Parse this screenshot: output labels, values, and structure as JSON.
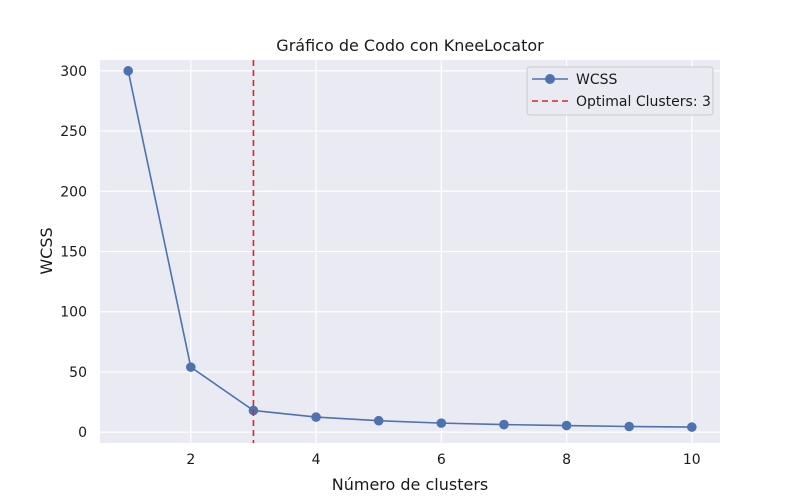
{
  "chart_data": {
    "type": "line",
    "title": "Gráfico de Codo con KneeLocator",
    "xlabel": "Número de clusters",
    "ylabel": "WCSS",
    "x": [
      1,
      2,
      3,
      4,
      5,
      6,
      7,
      8,
      9,
      10
    ],
    "series": [
      {
        "name": "WCSS",
        "values": [
          300,
          54,
          18,
          12.5,
          9.5,
          7.5,
          6.3,
          5.5,
          4.7,
          4.2
        ],
        "color": "#4c72b0",
        "marker": "circle"
      }
    ],
    "reference_line": {
      "orientation": "vertical",
      "x": 3,
      "label": "Optimal Clusters: 3",
      "color": "#d62728",
      "style": "dashed"
    },
    "xlim": [
      0.55,
      10.45
    ],
    "ylim": [
      -9,
      309
    ],
    "xticks": [
      2,
      4,
      6,
      8,
      10
    ],
    "yticks": [
      0,
      50,
      100,
      150,
      200,
      250,
      300
    ],
    "grid": true,
    "legend_position": "top-right",
    "background_color": "#eaeaf2"
  }
}
